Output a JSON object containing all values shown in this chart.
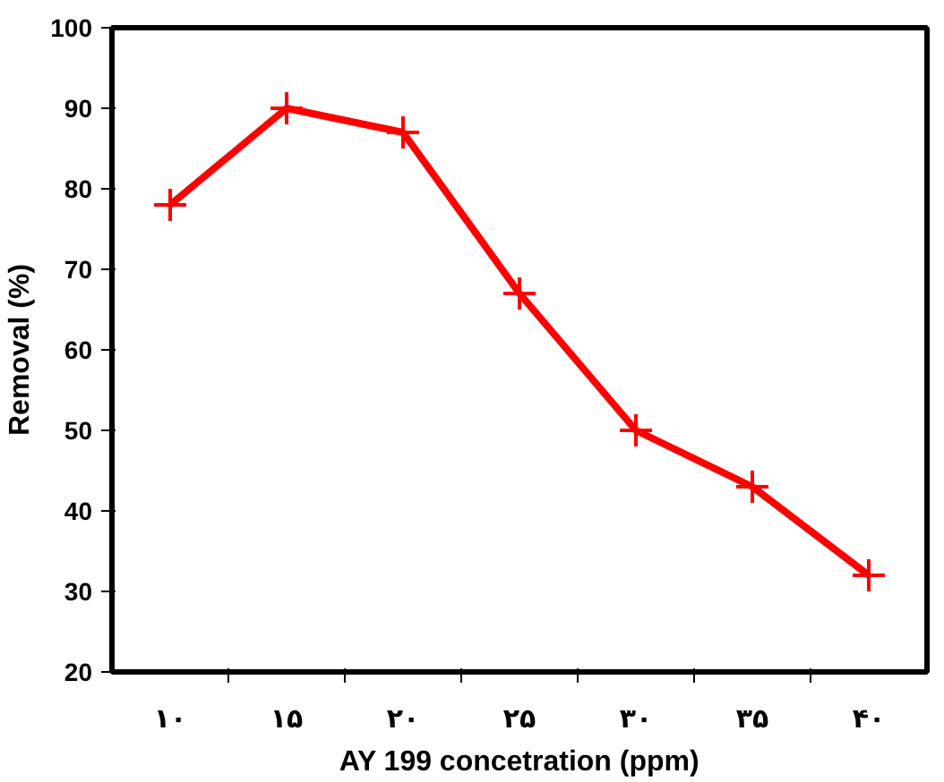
{
  "chart_data": {
    "type": "line",
    "xlabel": "AY 199 concetration (ppm)",
    "ylabel": "Removal (%)",
    "categories": [
      "۱۰",
      "۱۵",
      "۲۰",
      "۲۵",
      "۳۰",
      "۳۵",
      "۴۰"
    ],
    "series": [
      {
        "color": "#ff0000",
        "values": [
          78,
          90,
          87,
          67,
          50,
          43,
          32
        ]
      }
    ],
    "ylim": [
      20,
      100
    ],
    "yticks": [
      20,
      30,
      40,
      50,
      60,
      70,
      80,
      90,
      100
    ],
    "grid": false,
    "marker": "cross",
    "line_style": "solid"
  }
}
